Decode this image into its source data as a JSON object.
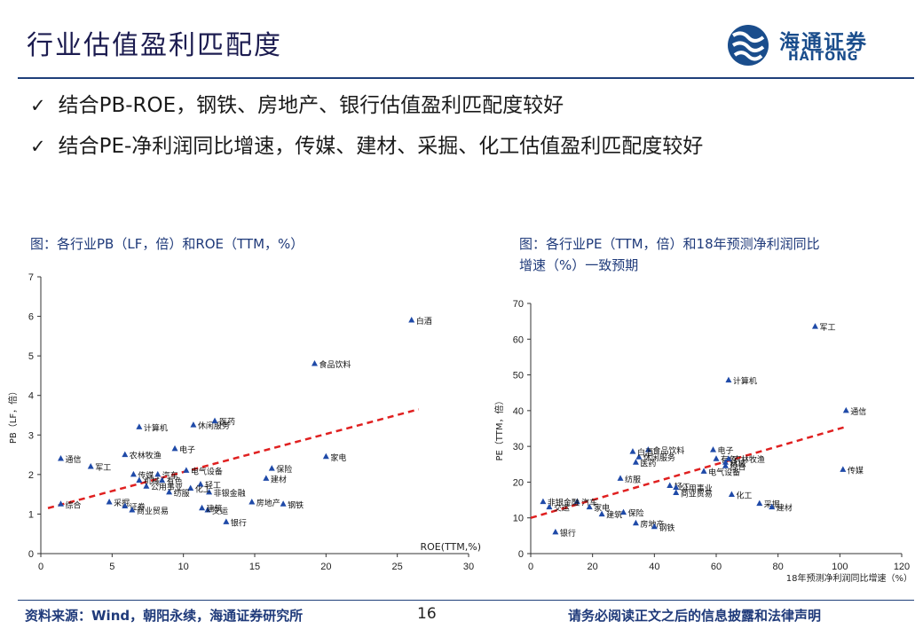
{
  "slide": {
    "title": "行业估值盈利匹配度",
    "logo_cn": "海通证券",
    "logo_en": "HAITONG",
    "bullets": [
      {
        "check": "✓",
        "text": "结合PB-ROE，钢铁、房地产、银行估值盈利匹配度较好"
      },
      {
        "check": "✓",
        "text": "结合PE-净利润同比增速，传媒、建材、采掘、化工估值盈利匹配度较好"
      }
    ],
    "fig1_caption": "图：各行业PB（LF，倍）和ROE（TTM，%）",
    "fig2_caption_line1": "图：各行业PE（TTM，倍）和18年预测净利润同比",
    "fig2_caption_line2": "增速（%）一致预期",
    "footer_source": "资料来源：Wind，朝阳永续，海通证券研究所",
    "page_number": "16",
    "footer_disclaimer": "请务必阅读正文之后的信息披露和法律声明",
    "colors": {
      "navy": "#1f3a7a",
      "marker": "#1f4aa8",
      "trend": "#e02020"
    }
  },
  "chart_data": [
    {
      "type": "scatter",
      "title": "",
      "xlabel": "ROE(TTM,%)",
      "ylabel": "PB（LF，倍）",
      "xlim": [
        0,
        30
      ],
      "ylim": [
        0,
        7
      ],
      "xticks": [
        0,
        5,
        10,
        15,
        20,
        25,
        30
      ],
      "yticks": [
        0,
        1,
        2,
        3,
        4,
        5,
        6,
        7
      ],
      "grid": false,
      "legend": "none",
      "trendline": [
        [
          0.5,
          1.15
        ],
        [
          26.5,
          3.65
        ]
      ],
      "points": [
        {
          "label": "白酒",
          "x": 26.0,
          "y": 5.9
        },
        {
          "label": "食品饮料",
          "x": 19.2,
          "y": 4.8
        },
        {
          "label": "家电",
          "x": 20.0,
          "y": 2.45
        },
        {
          "label": "保险",
          "x": 16.2,
          "y": 2.15
        },
        {
          "label": "建材",
          "x": 15.8,
          "y": 1.9
        },
        {
          "label": "房地产",
          "x": 14.8,
          "y": 1.3
        },
        {
          "label": "钢铁",
          "x": 17.0,
          "y": 1.25
        },
        {
          "label": "银行",
          "x": 13.0,
          "y": 0.8
        },
        {
          "label": "交运",
          "x": 11.7,
          "y": 1.1
        },
        {
          "label": "建筑",
          "x": 11.3,
          "y": 1.15
        },
        {
          "label": "非银金融",
          "x": 11.8,
          "y": 1.55
        },
        {
          "label": "轻工",
          "x": 11.2,
          "y": 1.75
        },
        {
          "label": "化工",
          "x": 10.5,
          "y": 1.65
        },
        {
          "label": "休闲服务",
          "x": 10.7,
          "y": 3.25
        },
        {
          "label": "医药",
          "x": 12.2,
          "y": 3.35
        },
        {
          "label": "电子",
          "x": 9.4,
          "y": 2.65
        },
        {
          "label": "电气设备",
          "x": 10.2,
          "y": 2.1
        },
        {
          "label": "有色",
          "x": 8.5,
          "y": 1.85
        },
        {
          "label": "计算机",
          "x": 6.9,
          "y": 3.2
        },
        {
          "label": "农林牧渔",
          "x": 5.9,
          "y": 2.5
        },
        {
          "label": "传媒",
          "x": 6.5,
          "y": 2.0
        },
        {
          "label": "机械",
          "x": 6.9,
          "y": 1.85
        },
        {
          "label": "通信",
          "x": 1.4,
          "y": 2.4
        },
        {
          "label": "军工",
          "x": 3.5,
          "y": 2.2
        },
        {
          "label": "汽车",
          "x": 8.2,
          "y": 2.0
        },
        {
          "label": "综合",
          "x": 1.4,
          "y": 1.25
        },
        {
          "label": "采掘",
          "x": 4.8,
          "y": 1.3
        },
        {
          "label": "证券",
          "x": 5.9,
          "y": 1.2
        },
        {
          "label": "纺服",
          "x": 9.0,
          "y": 1.55
        },
        {
          "label": "商业贸易",
          "x": 6.4,
          "y": 1.1
        },
        {
          "label": "公用事业",
          "x": 7.4,
          "y": 1.7
        }
      ]
    },
    {
      "type": "scatter",
      "title": "",
      "xlabel": "18年预测净利润同比增速（%）",
      "ylabel": "PE（TTM，倍）",
      "xlim": [
        0,
        120
      ],
      "ylim": [
        0,
        70
      ],
      "xticks": [
        0,
        20,
        40,
        60,
        80,
        100,
        120
      ],
      "yticks": [
        0,
        10,
        20,
        30,
        40,
        50,
        60,
        70
      ],
      "grid": false,
      "legend": "none",
      "trendline": [
        [
          0,
          10
        ],
        [
          102,
          35.5
        ]
      ],
      "points": [
        {
          "label": "军工",
          "x": 92,
          "y": 63.5
        },
        {
          "label": "计算机",
          "x": 64,
          "y": 48.5
        },
        {
          "label": "通信",
          "x": 102,
          "y": 40
        },
        {
          "label": "传媒",
          "x": 101,
          "y": 23.5
        },
        {
          "label": "电子",
          "x": 59,
          "y": 29
        },
        {
          "label": "有色",
          "x": 60,
          "y": 26.5
        },
        {
          "label": "电气设备",
          "x": 56,
          "y": 23
        },
        {
          "label": "机械",
          "x": 63,
          "y": 25.5
        },
        {
          "label": "农林牧渔",
          "x": 64,
          "y": 26.5
        },
        {
          "label": "综合",
          "x": 63,
          "y": 24.5
        },
        {
          "label": "食品饮料",
          "x": 38,
          "y": 29
        },
        {
          "label": "休闲服务",
          "x": 35,
          "y": 27
        },
        {
          "label": "白酒",
          "x": 33,
          "y": 28.5
        },
        {
          "label": "医药",
          "x": 34,
          "y": 25.5
        },
        {
          "label": "纺服",
          "x": 29,
          "y": 21
        },
        {
          "label": "轻工",
          "x": 45,
          "y": 19
        },
        {
          "label": "公用事业",
          "x": 47,
          "y": 18.5
        },
        {
          "label": "商业贸易",
          "x": 47,
          "y": 17
        },
        {
          "label": "化工",
          "x": 65,
          "y": 16.5
        },
        {
          "label": "采掘",
          "x": 74,
          "y": 14
        },
        {
          "label": "建材",
          "x": 78,
          "y": 13
        },
        {
          "label": "汽车",
          "x": 15,
          "y": 14.5
        },
        {
          "label": "家电",
          "x": 19,
          "y": 13
        },
        {
          "label": "非银金融",
          "x": 4,
          "y": 14.5
        },
        {
          "label": "交运",
          "x": 6,
          "y": 13
        },
        {
          "label": "建筑",
          "x": 23,
          "y": 11
        },
        {
          "label": "保险",
          "x": 30,
          "y": 11.5
        },
        {
          "label": "房地产",
          "x": 34,
          "y": 8.5
        },
        {
          "label": "钢铁",
          "x": 40,
          "y": 7.5
        },
        {
          "label": "银行",
          "x": 8,
          "y": 6
        }
      ]
    }
  ]
}
